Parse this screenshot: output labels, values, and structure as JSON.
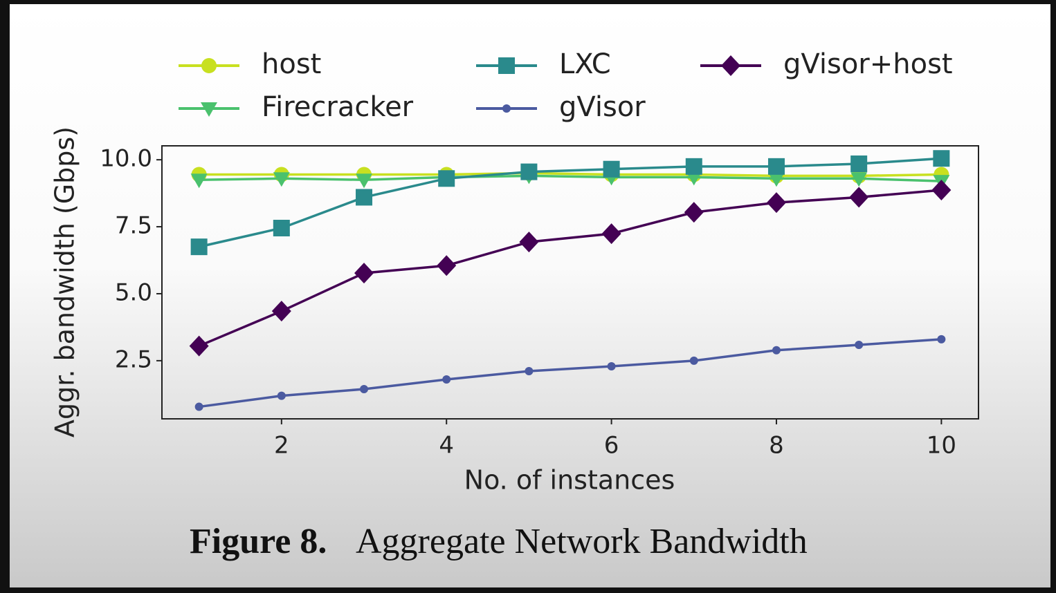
{
  "chart_data": {
    "type": "line",
    "x": [
      1,
      2,
      3,
      4,
      5,
      6,
      7,
      8,
      9,
      10
    ],
    "series": [
      {
        "name": "host",
        "color": "#c8e020",
        "marker": "circle",
        "values": [
          9.45,
          9.45,
          9.45,
          9.45,
          9.5,
          9.45,
          9.45,
          9.4,
          9.4,
          9.45
        ]
      },
      {
        "name": "Firecracker",
        "color": "#4ac16d",
        "marker": "triangle-down",
        "values": [
          9.25,
          9.3,
          9.25,
          9.35,
          9.4,
          9.35,
          9.35,
          9.3,
          9.3,
          9.2
        ]
      },
      {
        "name": "LXC",
        "color": "#2a8a8c",
        "marker": "square",
        "values": [
          6.75,
          7.45,
          8.6,
          9.3,
          9.55,
          9.65,
          9.75,
          9.75,
          9.85,
          10.05
        ]
      },
      {
        "name": "gVisor",
        "color": "#4b5aa0",
        "marker": "point",
        "values": [
          0.78,
          1.19,
          1.44,
          1.8,
          2.11,
          2.29,
          2.5,
          2.89,
          3.09,
          3.3
        ]
      },
      {
        "name": "gVisor+host",
        "color": "#440154",
        "marker": "diamond",
        "values": [
          3.05,
          4.35,
          5.77,
          6.05,
          6.93,
          7.24,
          8.04,
          8.4,
          8.6,
          8.87
        ]
      }
    ],
    "xlim": [
      0.55,
      10.45
    ],
    "ylim": [
      0.33,
      10.52
    ],
    "xticks": [
      2,
      4,
      6,
      8,
      10
    ],
    "yticks": [
      {
        "value": 10,
        "label": "10.0"
      },
      7.5,
      {
        "value": 5,
        "label": "5.0"
      },
      2.5
    ],
    "xlabel": "No. of instances",
    "ylabel": "Aggr. bandwidth (Gbps)",
    "legend": "top",
    "legend_columns": 3,
    "caption_label": "Figure 8.",
    "caption": "Aggregate Network Bandwidth"
  }
}
